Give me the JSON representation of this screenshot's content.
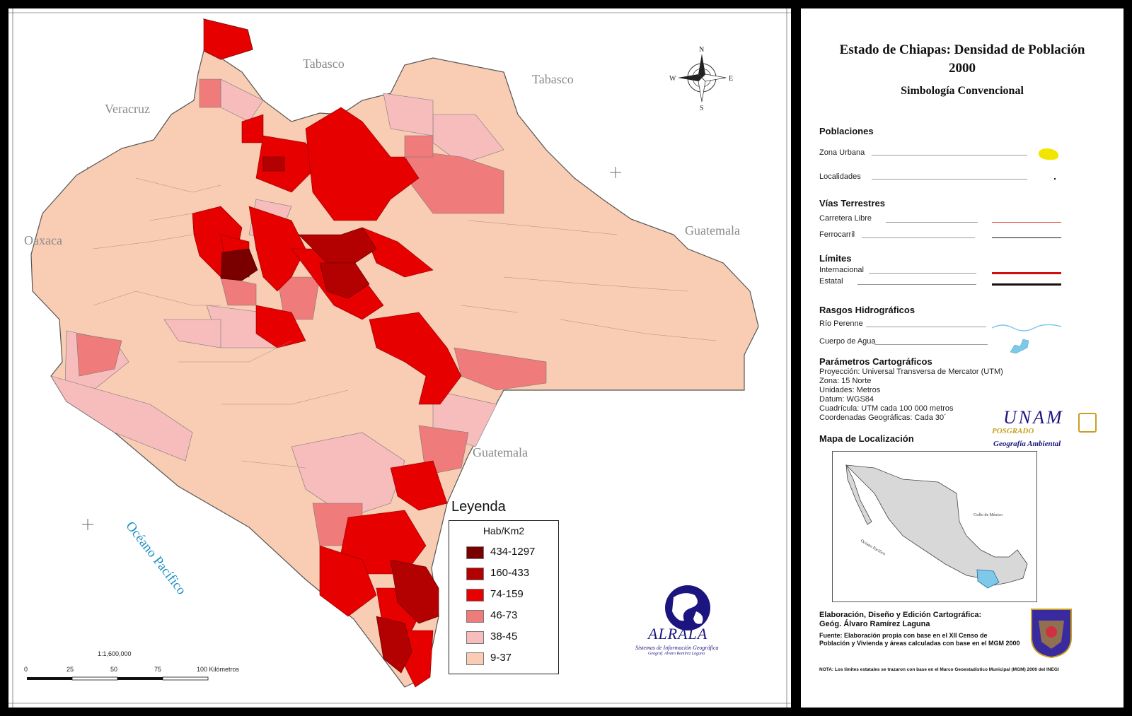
{
  "title": {
    "line1": "Estado de Chiapas: Densidad de Población",
    "line2": "2000",
    "subtitle": "Simbología Convencional"
  },
  "neighbors": {
    "tabasco_1": "Tabasco",
    "tabasco_2": "Tabasco",
    "veracruz": "Veracruz",
    "oaxaca": "Oaxaca",
    "guatemala_1": "Guatemala",
    "guatemala_2": "Guatemala",
    "ocean": "Océano Pacífico"
  },
  "legend": {
    "title": "Leyenda",
    "unit": "Hab/Km2",
    "classes": [
      {
        "label": "434-1297",
        "color": "#7a0000"
      },
      {
        "label": "160-433",
        "color": "#b30000"
      },
      {
        "label": "74-159",
        "color": "#e60000"
      },
      {
        "label": "46-73",
        "color": "#f07b7b"
      },
      {
        "label": "38-45",
        "color": "#f7bcbc"
      },
      {
        "label": "9-37",
        "color": "#f8cdb4"
      }
    ]
  },
  "scale": {
    "ratio": "1:1,600,000",
    "ticks": [
      "0",
      "25",
      "50",
      "75",
      "100 Kilómetros"
    ]
  },
  "symbology": {
    "poblaciones": {
      "header": "Poblaciones",
      "items": [
        "Zona Urbana",
        "Localidades"
      ]
    },
    "vias": {
      "header": "Vías Terrestres",
      "items": [
        "Carretera Libre",
        "Ferrocarril"
      ]
    },
    "limites": {
      "header": "Límites",
      "items": [
        "Internacional",
        "Estatal"
      ]
    },
    "hidro": {
      "header": "Rasgos Hidrográficos",
      "items": [
        "Río Perenne",
        "Cuerpo de Agua"
      ]
    }
  },
  "parametros": {
    "header": "Parámetros Cartográficos",
    "lines": [
      "Proyección: Universal Transversa de Mercator (UTM)",
      "Zona: 15 Norte",
      "Unidades: Metros",
      "Datum: WGS84",
      "Cuadrícula: UTM cada 100 000 metros",
      "Coordenadas Geográficas: Cada 30´"
    ]
  },
  "localizacion": {
    "header": "Mapa de Localización",
    "golfo": "Golfo de México",
    "oceano": "Océano Pacífico"
  },
  "logos": {
    "unam": "UNAM",
    "posgrado": "POSGRADO",
    "geografia": "Geografía Ambiental",
    "alrala": "ALRALA",
    "alrala_sub1": "Sistemas de Información Geográfica",
    "alrala_sub2": "Geograf. Alvaro Ramírez Laguna"
  },
  "credits": {
    "line1": "Elaboración, Diseño y Edición Cartográfica:",
    "line2": "Geóg. Álvaro Ramírez Laguna",
    "fuente1": "Fuente: Elaboración propia con base en el XII Censo de",
    "fuente2": "Población y Vivienda y áreas calculadas con base en el MGM 2000",
    "nota": "NOTA: Los límites estatales se trazaron con base en el Marco Geoestadístico Municipal (MGM) 2000 del INEGI"
  },
  "colors": {
    "c1": "#7a0000",
    "c2": "#b30000",
    "c3": "#e60000",
    "c4": "#f07b7b",
    "c5": "#f7bcbc",
    "c6": "#f8cdb4",
    "water": "#7ec8ea",
    "urban": "#f2e600",
    "road": "#e34a3a"
  }
}
